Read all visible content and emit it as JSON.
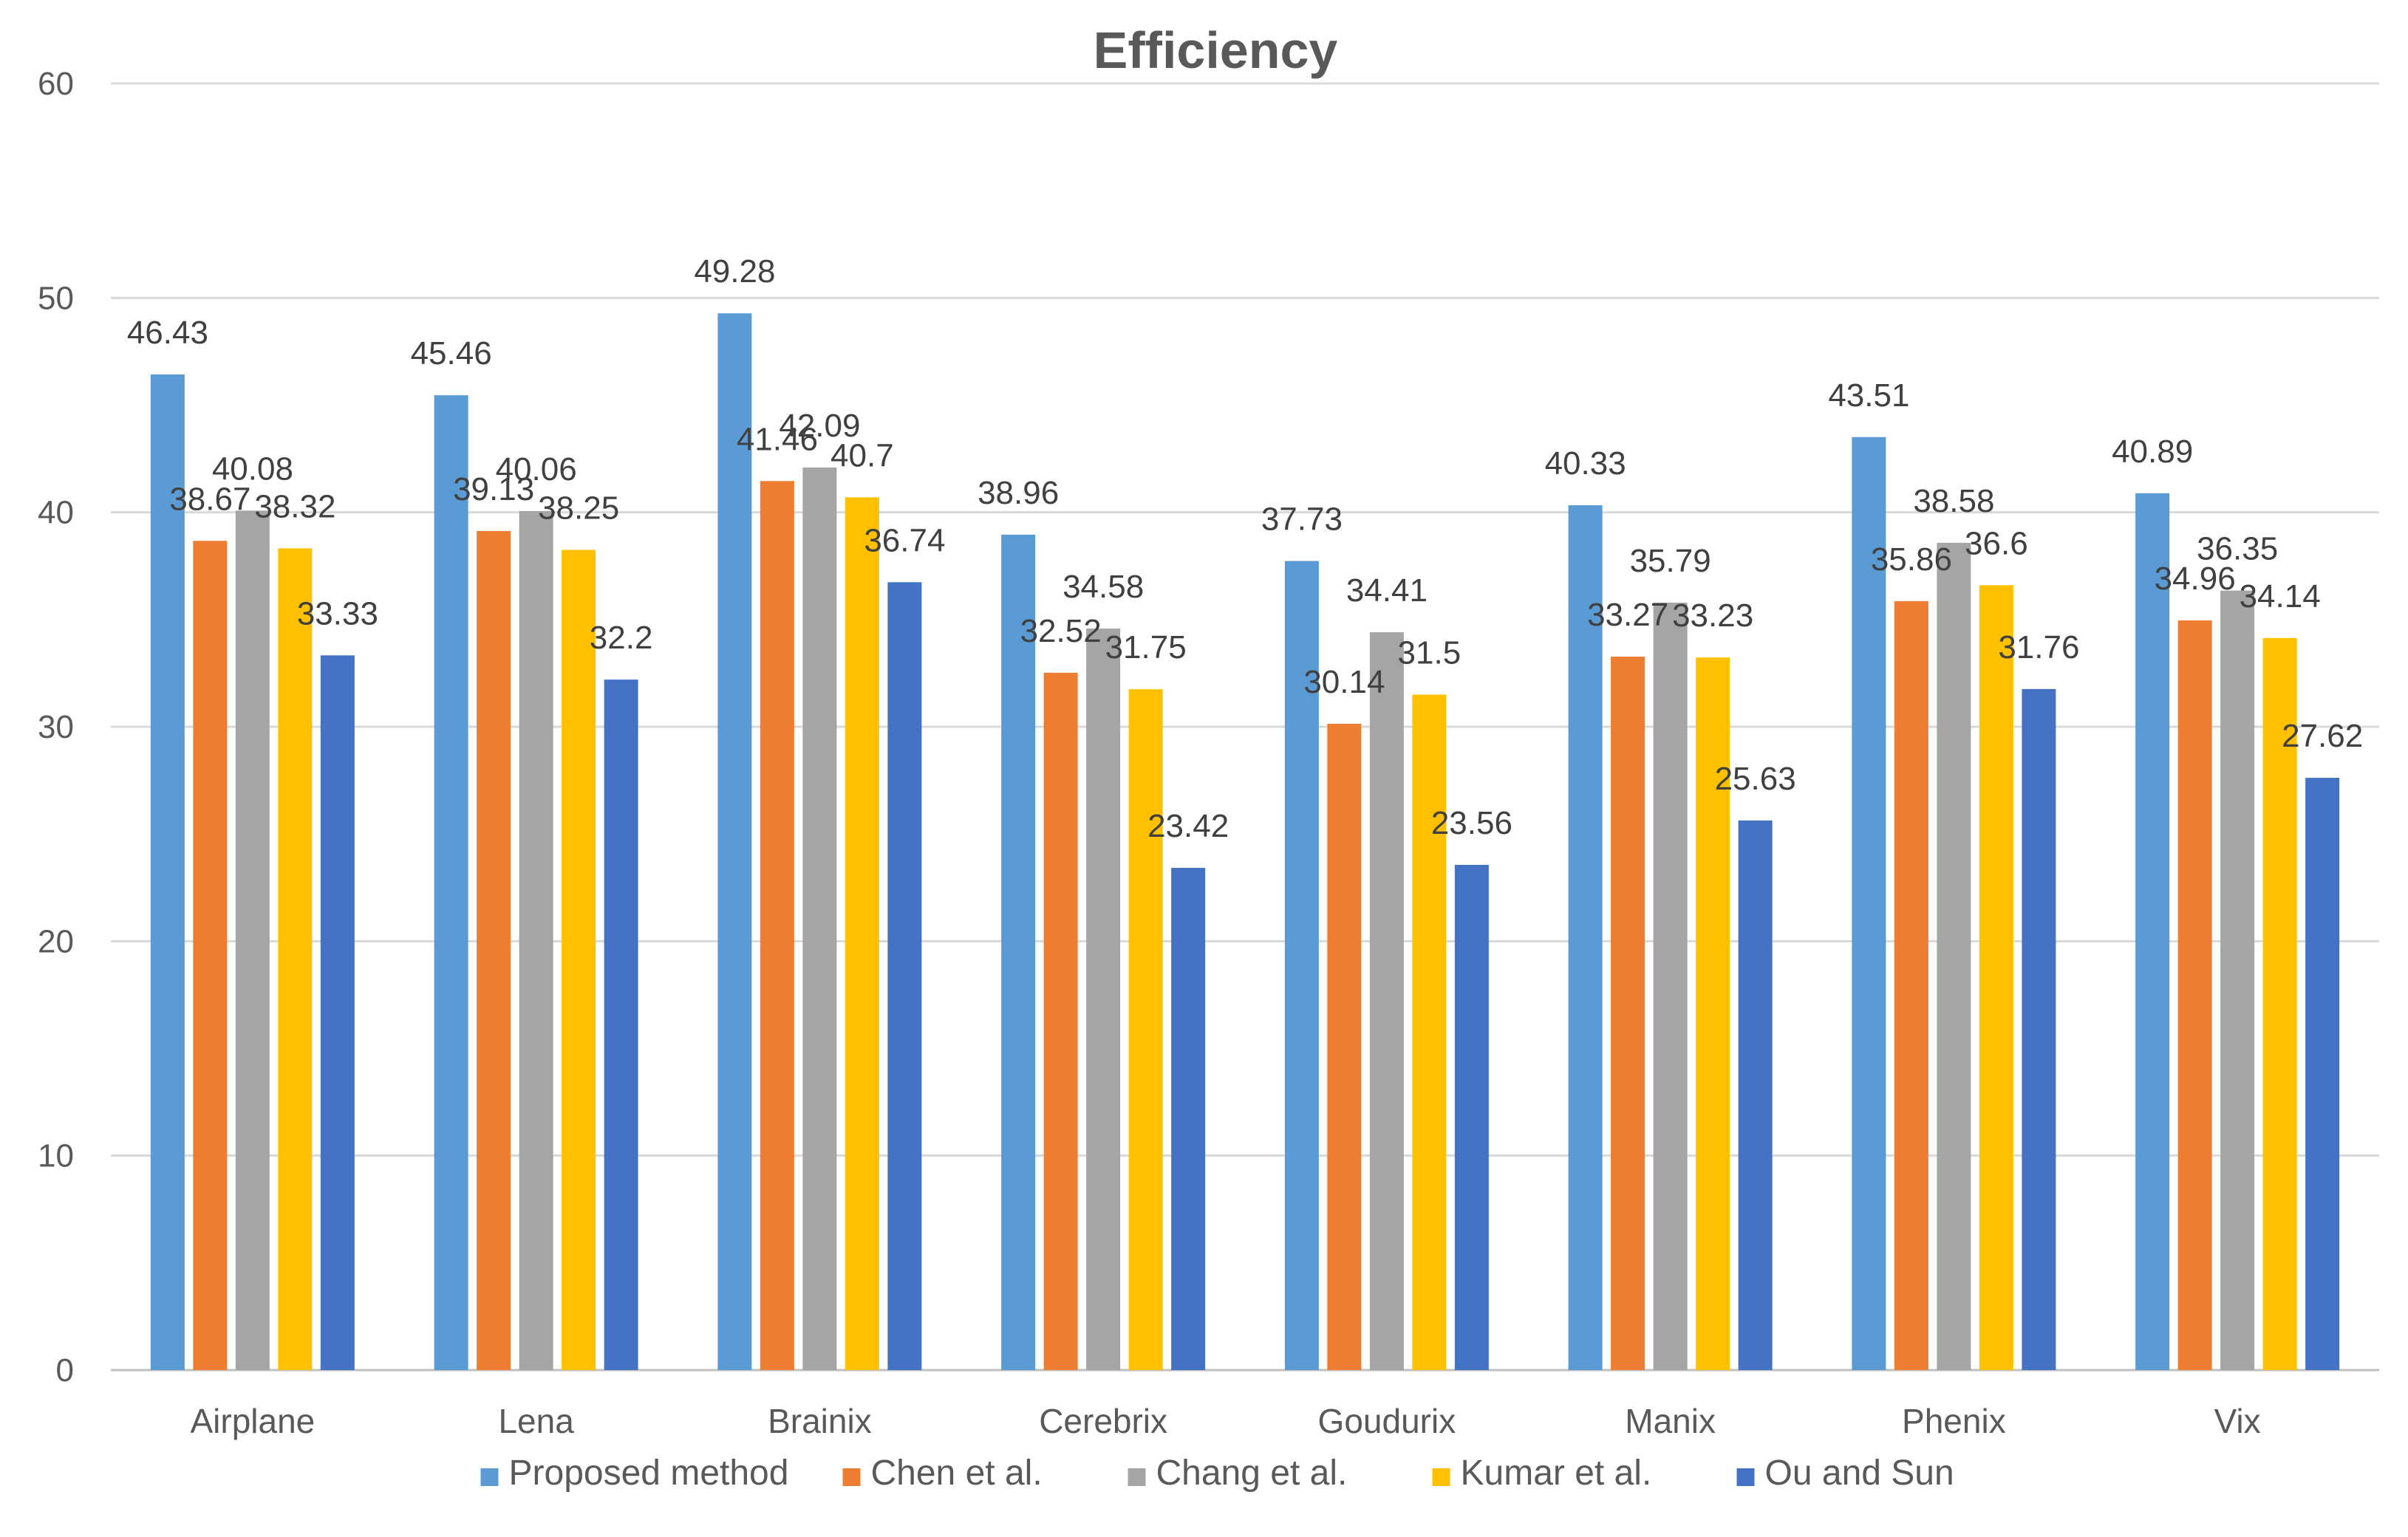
{
  "chart_data": {
    "type": "bar",
    "title": "Efficiency",
    "xlabel": "",
    "ylabel": "",
    "ylim": [
      0,
      60
    ],
    "yticks": [
      0,
      10,
      20,
      30,
      40,
      50,
      60
    ],
    "grid": true,
    "legend_position": "bottom",
    "categories": [
      "Airplane",
      "Lena",
      "Brainix",
      "Cerebrix",
      "Goudurix",
      "Manix",
      "Phenix",
      "Vix"
    ],
    "series": [
      {
        "name": "Proposed method",
        "color": "#5B9BD5",
        "values": [
          46.43,
          45.46,
          49.28,
          38.96,
          37.73,
          40.33,
          43.51,
          40.89
        ]
      },
      {
        "name": "Chen et al.",
        "color": "#ED7D31",
        "values": [
          38.67,
          39.13,
          41.46,
          32.52,
          30.14,
          33.27,
          35.86,
          34.96
        ]
      },
      {
        "name": "Chang et al.",
        "color": "#A5A5A5",
        "values": [
          40.08,
          40.06,
          42.09,
          34.58,
          34.41,
          35.79,
          38.58,
          36.35
        ]
      },
      {
        "name": "Kumar et al.",
        "color": "#FFC000",
        "values": [
          38.32,
          38.25,
          40.7,
          31.75,
          31.5,
          33.23,
          36.6,
          34.14
        ]
      },
      {
        "name": "Ou and Sun",
        "color": "#4472C4",
        "values": [
          33.33,
          32.2,
          36.74,
          23.42,
          23.56,
          25.63,
          31.76,
          27.62
        ]
      }
    ]
  }
}
